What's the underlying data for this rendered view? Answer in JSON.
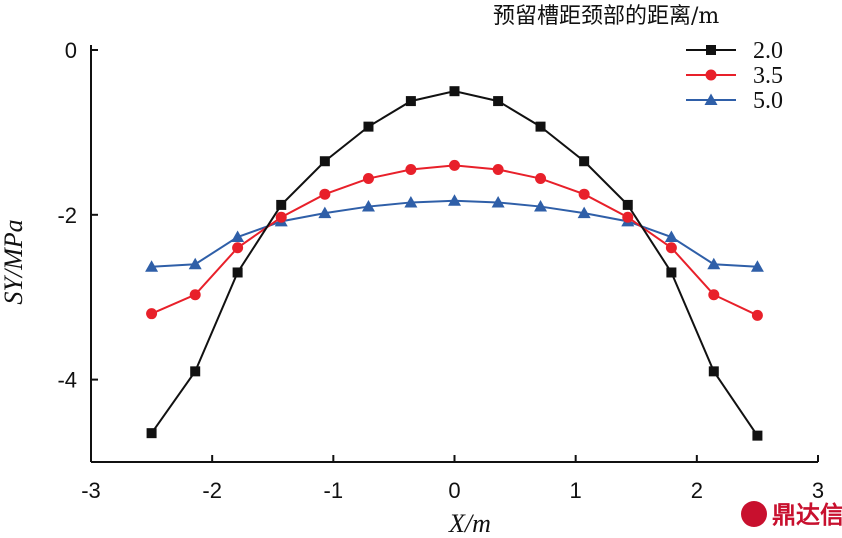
{
  "chart_data": {
    "type": "line",
    "title": "",
    "xlabel": "X/m",
    "ylabel": "SY/MPa",
    "xlim": [
      -3,
      3
    ],
    "ylim": [
      -5,
      0
    ],
    "xticks": [
      "-3",
      "-2",
      "-1",
      "0",
      "1",
      "2",
      "3"
    ],
    "yticks": [
      "0",
      "-2",
      "-4"
    ],
    "legend_title": "预留槽距颈部的距离/m",
    "legend_position": "top-right",
    "grid": false,
    "x": [
      -2.5,
      -2.14,
      -1.79,
      -1.43,
      -1.07,
      -0.71,
      -0.36,
      0,
      0.36,
      0.71,
      1.07,
      1.43,
      1.79,
      2.14,
      2.5
    ],
    "series": [
      {
        "name": "2.0",
        "color": "#111111",
        "marker": "square",
        "values": [
          -4.65,
          -3.9,
          -2.7,
          -1.88,
          -1.35,
          -0.93,
          -0.62,
          -0.5,
          -0.62,
          -0.93,
          -1.35,
          -1.88,
          -2.7,
          -3.9,
          -4.68
        ]
      },
      {
        "name": "3.5",
        "color": "#e8202a",
        "marker": "circle",
        "values": [
          -3.2,
          -2.97,
          -2.4,
          -2.03,
          -1.75,
          -1.56,
          -1.45,
          -1.4,
          -1.45,
          -1.56,
          -1.75,
          -2.03,
          -2.4,
          -2.97,
          -3.22
        ]
      },
      {
        "name": "5.0",
        "color": "#2f5fa8",
        "marker": "triangle",
        "values": [
          -2.63,
          -2.6,
          -2.27,
          -2.08,
          -1.98,
          -1.9,
          -1.85,
          -1.83,
          -1.85,
          -1.9,
          -1.98,
          -2.08,
          -2.27,
          -2.6,
          -2.63
        ]
      }
    ]
  },
  "watermark": {
    "text": "鼎达信",
    "color": "#c8102e"
  }
}
